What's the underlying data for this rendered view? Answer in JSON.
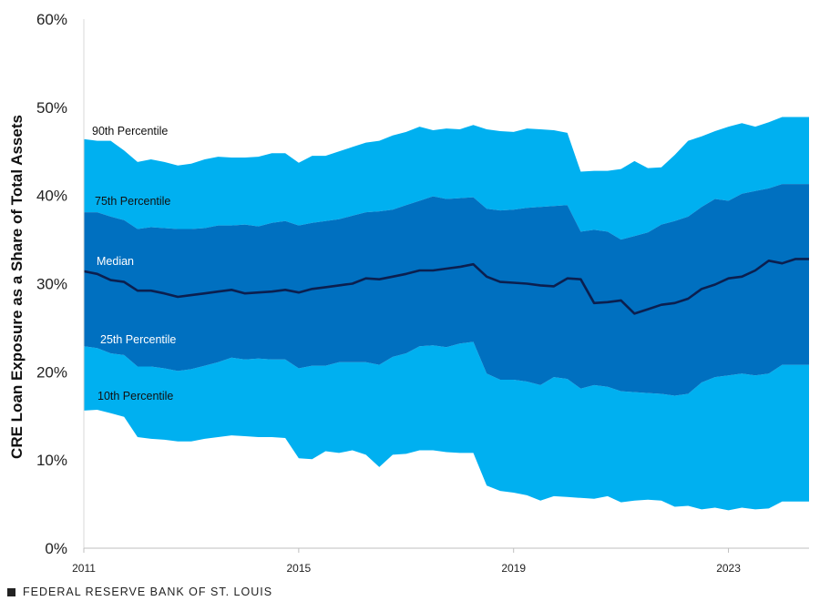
{
  "chart_data": {
    "type": "area",
    "title": "",
    "xlabel": "",
    "ylabel": "CRE Loan Exposure as a Share of Total Assets",
    "ylim": [
      0,
      60
    ],
    "xlim": [
      2011.0,
      2024.5
    ],
    "y_ticks": [
      "0%",
      "10%",
      "20%",
      "30%",
      "40%",
      "50%",
      "60%"
    ],
    "y_tick_values": [
      0,
      10,
      20,
      30,
      40,
      50,
      60
    ],
    "x_ticks": [
      "2011",
      "2015",
      "2019",
      "2023"
    ],
    "x_tick_values": [
      2011,
      2015,
      2019,
      2023
    ],
    "x": [
      2011.0,
      2011.25,
      2011.5,
      2011.75,
      2012.0,
      2012.25,
      2012.5,
      2012.75,
      2013.0,
      2013.25,
      2013.5,
      2013.75,
      2014.0,
      2014.25,
      2014.5,
      2014.75,
      2015.0,
      2015.25,
      2015.5,
      2015.75,
      2016.0,
      2016.25,
      2016.5,
      2016.75,
      2017.0,
      2017.25,
      2017.5,
      2017.75,
      2018.0,
      2018.25,
      2018.5,
      2018.75,
      2019.0,
      2019.25,
      2019.5,
      2019.75,
      2020.0,
      2020.25,
      2020.5,
      2020.75,
      2021.0,
      2021.25,
      2021.5,
      2021.75,
      2022.0,
      2022.25,
      2022.5,
      2022.75,
      2023.0,
      2023.25,
      2023.5,
      2023.75,
      2024.0,
      2024.25,
      2024.5
    ],
    "series": [
      {
        "name": "90th Percentile",
        "values": [
          46.4,
          46.2,
          46.2,
          45.1,
          43.8,
          44.1,
          43.8,
          43.4,
          43.6,
          44.1,
          44.4,
          44.3,
          44.3,
          44.4,
          44.8,
          44.8,
          43.7,
          44.5,
          44.5,
          45.0,
          45.5,
          46.0,
          46.2,
          46.8,
          47.2,
          47.8,
          47.4,
          47.6,
          47.5,
          48.0,
          47.5,
          47.3,
          47.2,
          47.6,
          47.5,
          47.4,
          47.1,
          42.7,
          42.8,
          42.8,
          43.0,
          43.9,
          43.1,
          43.2,
          44.6,
          46.2,
          46.7,
          47.3,
          47.8,
          48.2,
          47.8,
          48.3,
          48.9,
          48.9,
          48.9
        ]
      },
      {
        "name": "75th Percentile",
        "values": [
          38.1,
          38.1,
          37.6,
          37.2,
          36.2,
          36.4,
          36.3,
          36.2,
          36.2,
          36.3,
          36.6,
          36.6,
          36.7,
          36.5,
          36.9,
          37.1,
          36.6,
          36.9,
          37.1,
          37.3,
          37.7,
          38.1,
          38.2,
          38.4,
          38.9,
          39.4,
          39.9,
          39.6,
          39.7,
          39.8,
          38.5,
          38.3,
          38.4,
          38.6,
          38.7,
          38.8,
          38.9,
          35.9,
          36.1,
          35.9,
          35.0,
          35.4,
          35.8,
          36.7,
          37.1,
          37.6,
          38.7,
          39.6,
          39.4,
          40.2,
          40.5,
          40.8,
          41.3,
          41.3,
          41.3
        ]
      },
      {
        "name": "Median",
        "values": [
          31.4,
          31.1,
          30.4,
          30.2,
          29.2,
          29.2,
          28.9,
          28.5,
          28.7,
          28.9,
          29.1,
          29.3,
          28.9,
          29.0,
          29.1,
          29.3,
          29.0,
          29.4,
          29.6,
          29.8,
          30.0,
          30.6,
          30.5,
          30.8,
          31.1,
          31.5,
          31.5,
          31.7,
          31.9,
          32.2,
          30.8,
          30.2,
          30.1,
          30.0,
          29.8,
          29.7,
          30.6,
          30.5,
          27.8,
          27.9,
          28.1,
          26.6,
          27.1,
          27.6,
          27.8,
          28.3,
          29.4,
          29.9,
          30.6,
          30.8,
          31.5,
          32.6,
          32.3,
          32.8,
          32.8
        ]
      },
      {
        "name": "25th Percentile",
        "values": [
          22.9,
          22.7,
          22.1,
          21.9,
          20.6,
          20.6,
          20.4,
          20.1,
          20.3,
          20.7,
          21.1,
          21.6,
          21.4,
          21.5,
          21.4,
          21.4,
          20.4,
          20.7,
          20.7,
          21.1,
          21.1,
          21.1,
          20.8,
          21.7,
          22.1,
          22.9,
          23.0,
          22.8,
          23.2,
          23.4,
          19.8,
          19.1,
          19.1,
          18.9,
          18.5,
          19.4,
          19.2,
          18.1,
          18.5,
          18.3,
          17.8,
          17.7,
          17.6,
          17.5,
          17.3,
          17.5,
          18.8,
          19.4,
          19.6,
          19.8,
          19.6,
          19.8,
          20.8,
          20.8,
          20.8
        ]
      },
      {
        "name": "10th Percentile",
        "values": [
          15.6,
          15.7,
          15.3,
          14.9,
          12.6,
          12.4,
          12.3,
          12.1,
          12.1,
          12.4,
          12.6,
          12.8,
          12.7,
          12.6,
          12.6,
          12.5,
          10.2,
          10.1,
          11.0,
          10.8,
          11.1,
          10.6,
          9.2,
          10.6,
          10.7,
          11.1,
          11.1,
          10.9,
          10.8,
          10.8,
          7.1,
          6.5,
          6.3,
          6.0,
          5.4,
          5.9,
          5.8,
          5.7,
          5.6,
          5.9,
          5.2,
          5.4,
          5.5,
          5.4,
          4.7,
          4.8,
          4.4,
          4.6,
          4.3,
          4.6,
          4.4,
          4.5,
          5.3,
          5.3,
          5.3
        ]
      }
    ],
    "band_labels": [
      "90th Percentile",
      "75th Percentile",
      "Median",
      "25th Percentile",
      "10th Percentile"
    ],
    "colors": {
      "outer_band": "#00b0f0",
      "inner_band": "#0070c0",
      "median_line": "#0b1f4f",
      "label_dark": "#111111",
      "label_light": "#ffffff"
    },
    "grid": false
  },
  "footer": {
    "source": "FEDERAL RESERVE BANK OF ST. LOUIS"
  }
}
